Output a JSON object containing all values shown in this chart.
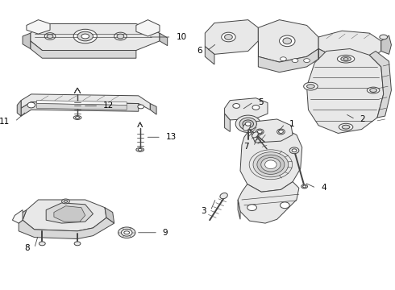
{
  "background_color": "#ffffff",
  "line_color": "#444444",
  "label_color": "#000000",
  "figsize": [
    4.9,
    3.6
  ],
  "dpi": 100,
  "border_color": "#cccccc",
  "part_fill": "#f5f5f5",
  "part_fill2": "#e8e8e8",
  "part_fill3": "#d8d8d8",
  "shadow_fill": "#c8c8c8"
}
